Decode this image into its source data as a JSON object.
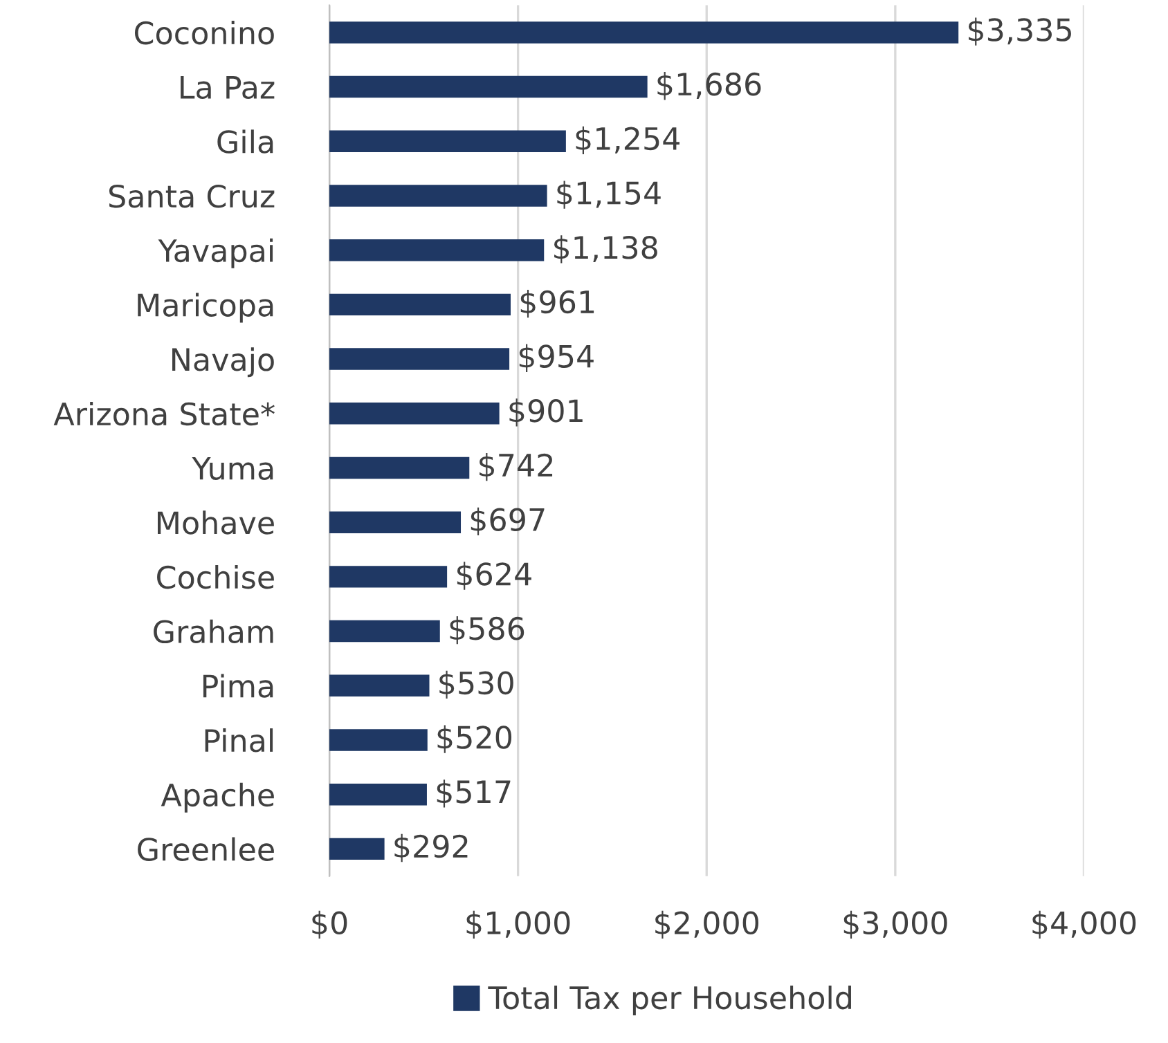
{
  "chart_data": {
    "type": "bar",
    "orientation": "horizontal",
    "categories": [
      "Coconino",
      "La Paz",
      "Gila",
      "Santa Cruz",
      "Yavapai",
      "Maricopa",
      "Navajo",
      "Arizona State*",
      "Yuma",
      "Mohave",
      "Cochise",
      "Graham",
      "Pima",
      "Pinal",
      "Apache",
      "Greenlee"
    ],
    "series": [
      {
        "name": "Total Tax per Household",
        "color": "#1f3864",
        "values": [
          3335,
          1686,
          1254,
          1154,
          1138,
          961,
          954,
          901,
          742,
          697,
          624,
          586,
          530,
          520,
          517,
          292
        ],
        "value_labels": [
          "$3,335",
          "$1,686",
          "$1,254",
          "$1,154",
          "$1,138",
          "$961",
          "$954",
          "$901",
          "$742",
          "$697",
          "$624",
          "$586",
          "$530",
          "$520",
          "$517",
          "$292"
        ]
      }
    ],
    "xlim": [
      0,
      4000
    ],
    "xticks": [
      {
        "value": 0,
        "label": "$0"
      },
      {
        "value": 1000,
        "label": "$1,000"
      },
      {
        "value": 2000,
        "label": "$2,000"
      },
      {
        "value": 3000,
        "label": "$3,000"
      },
      {
        "value": 4000,
        "label": "$4,000"
      }
    ],
    "grid": "x",
    "legend": "bottom"
  }
}
